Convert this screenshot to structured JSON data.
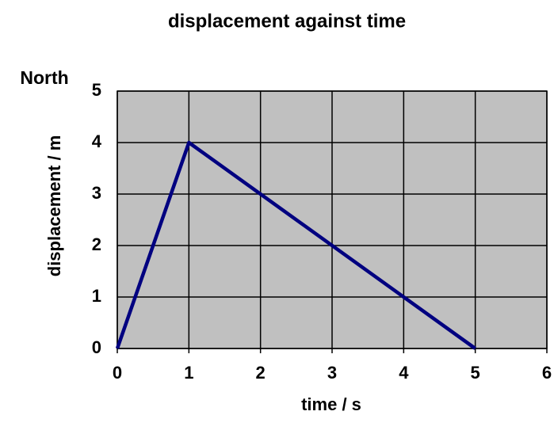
{
  "chart_data": {
    "type": "line",
    "title": "displacement against time",
    "x_label": "time / s",
    "y_label": "displacement / m",
    "annotation": "North",
    "x": [
      0,
      1,
      5
    ],
    "values": [
      0,
      4,
      0
    ],
    "color": "#000080",
    "xlim": [
      0,
      6
    ],
    "xticks": [
      0,
      1,
      2,
      3,
      4,
      5,
      6
    ],
    "ylim": [
      0,
      5
    ],
    "yticks": [
      0,
      1,
      2,
      3,
      4,
      5
    ],
    "grid": true,
    "plot_background": "#c0c0c0"
  }
}
